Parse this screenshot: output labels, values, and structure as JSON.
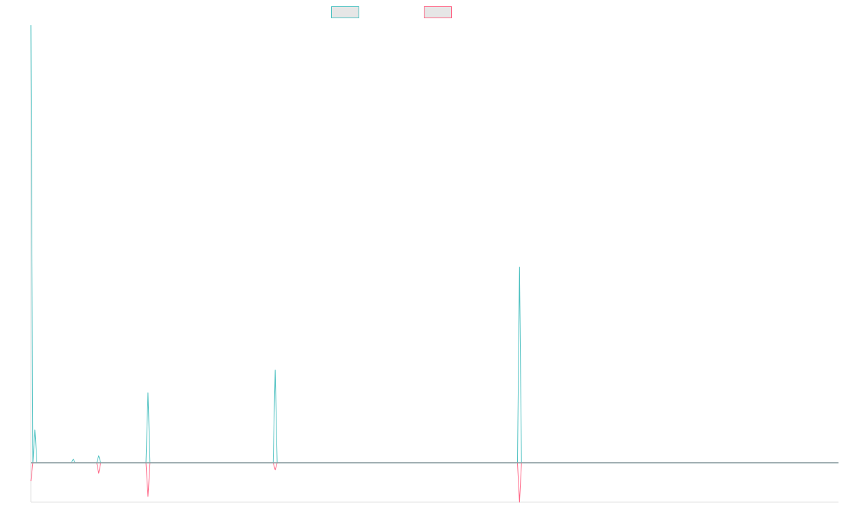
{
  "chart_data": {
    "type": "line",
    "title": "",
    "xlabel": "",
    "ylabel": "",
    "legend_position": "top-center",
    "grid": false,
    "x_domain": [
      0,
      200
    ],
    "ylim": [
      -9,
      100
    ],
    "baseline": 0,
    "series": [
      {
        "color": "#4bc0c0",
        "fill": "#e6e6e6",
        "points": [
          [
            0,
            100
          ],
          [
            0.5,
            0
          ],
          [
            1,
            7.5
          ],
          [
            1.5,
            0
          ],
          [
            10,
            0
          ],
          [
            10.5,
            0.8
          ],
          [
            11,
            0
          ],
          [
            16.3,
            0
          ],
          [
            16.8,
            1.6
          ],
          [
            17.3,
            0
          ],
          [
            28.5,
            0
          ],
          [
            29,
            16
          ],
          [
            29.5,
            0
          ],
          [
            60,
            0
          ],
          [
            60.5,
            21.2
          ],
          [
            61,
            0
          ],
          [
            120.5,
            0
          ],
          [
            121,
            44.7
          ],
          [
            121.5,
            0
          ],
          [
            200,
            0
          ]
        ]
      },
      {
        "color": "#ff6384",
        "fill": "#e6e6e6",
        "points": [
          [
            0,
            -4.2
          ],
          [
            0.5,
            0
          ],
          [
            16.3,
            0
          ],
          [
            16.8,
            -2.4
          ],
          [
            17.3,
            0
          ],
          [
            28.5,
            0
          ],
          [
            29,
            -7.7
          ],
          [
            29.5,
            0
          ],
          [
            60,
            0
          ],
          [
            60.5,
            -1.6
          ],
          [
            61,
            0
          ],
          [
            120.5,
            0
          ],
          [
            121,
            -9
          ],
          [
            121.5,
            0
          ],
          [
            200,
            0
          ]
        ]
      }
    ]
  }
}
